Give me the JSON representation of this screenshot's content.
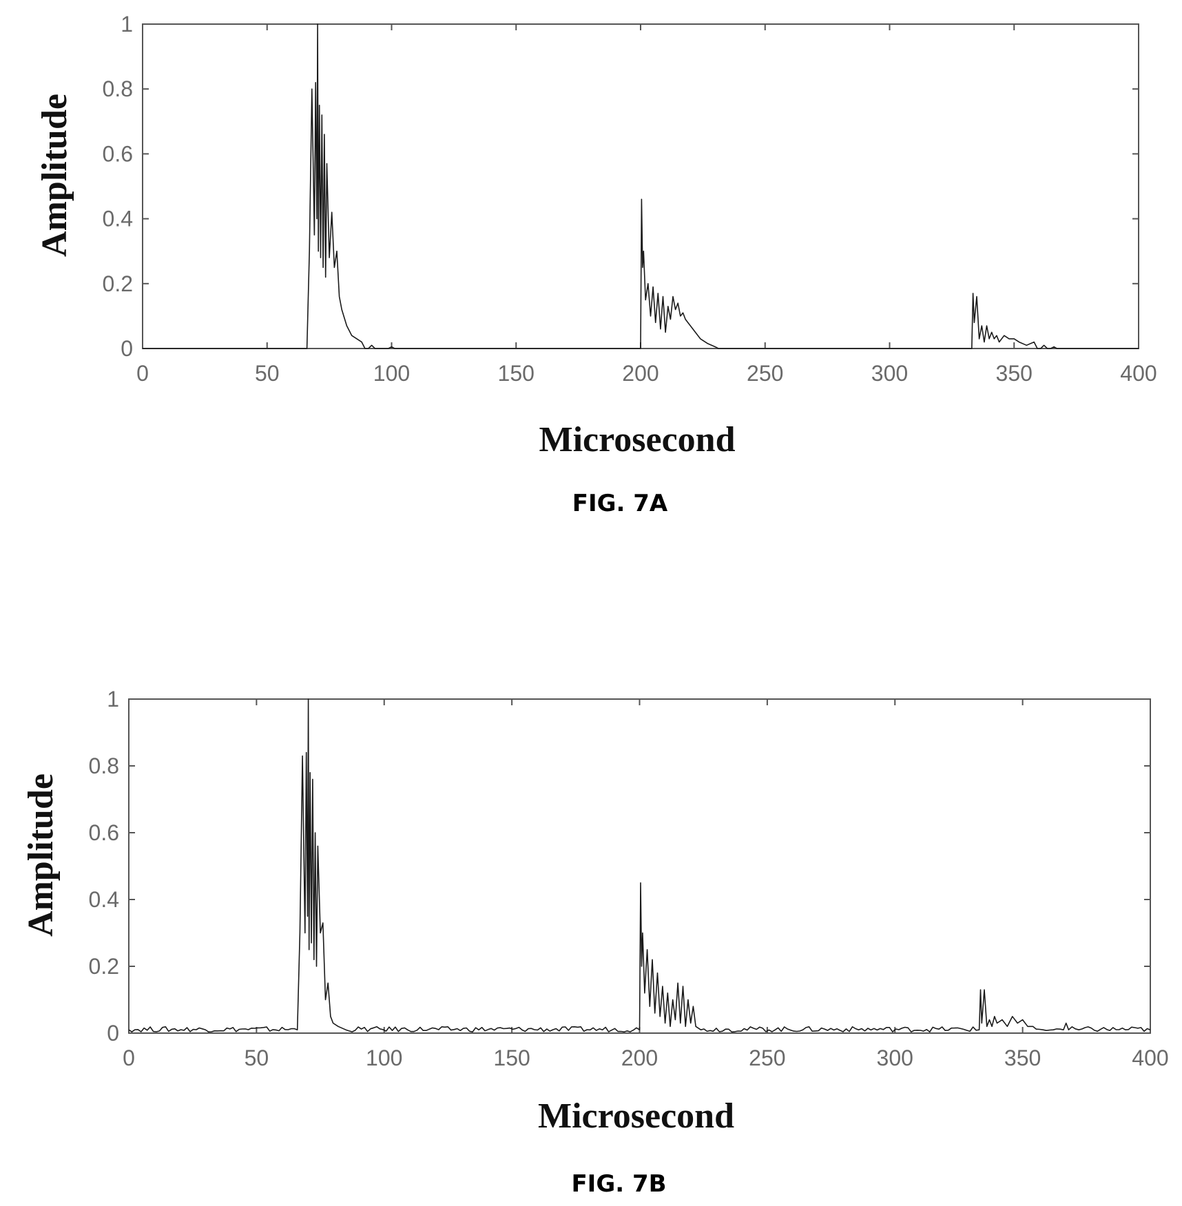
{
  "chart_data": [
    {
      "type": "line",
      "figure_label": "FIG. 7A",
      "xlabel": "Microsecond",
      "ylabel": "Amplitude",
      "xlim": [
        0,
        400
      ],
      "ylim": [
        0,
        1
      ],
      "xticks": [
        "0",
        "50",
        "100",
        "150",
        "200",
        "250",
        "300",
        "350",
        "400"
      ],
      "yticks": [
        "0",
        "0.2",
        "0.4",
        "0.6",
        "0.8",
        "1"
      ],
      "xtick_values": [
        0,
        50,
        100,
        150,
        200,
        250,
        300,
        350,
        400
      ],
      "ytick_values": [
        0,
        0.2,
        0.4,
        0.6,
        0.8,
        1
      ],
      "grid": false,
      "noise_floor": 0.0,
      "series": [
        {
          "x": [
            0,
            66,
            67,
            68,
            69,
            69.5,
            70,
            70.3,
            70.6,
            71,
            71.5,
            72,
            72.5,
            73,
            73.5,
            74,
            75,
            76,
            77,
            78,
            79,
            80,
            82,
            84,
            88,
            92,
            100,
            110,
            200,
            200.4,
            200.8,
            201.2,
            202,
            203,
            204,
            205,
            206,
            207,
            208,
            209,
            210,
            211,
            212,
            213,
            214,
            215,
            216,
            217,
            218,
            220,
            222,
            224,
            227,
            230,
            235,
            333,
            333.5,
            334,
            335,
            336,
            337,
            338,
            339,
            340,
            341,
            342,
            343,
            344,
            346,
            348,
            350,
            352,
            355,
            358,
            362,
            366,
            372,
            400
          ],
          "y": [
            0,
            0,
            0.3,
            0.8,
            0.35,
            0.82,
            0.4,
            1.0,
            0.3,
            0.75,
            0.28,
            0.72,
            0.25,
            0.66,
            0.22,
            0.57,
            0.28,
            0.42,
            0.25,
            0.3,
            0.16,
            0.12,
            0.07,
            0.04,
            0.02,
            0.01,
            0.005,
            0,
            0,
            0.46,
            0.25,
            0.3,
            0.15,
            0.2,
            0.1,
            0.19,
            0.08,
            0.17,
            0.06,
            0.16,
            0.05,
            0.13,
            0.09,
            0.16,
            0.12,
            0.14,
            0.1,
            0.11,
            0.09,
            0.07,
            0.05,
            0.03,
            0.015,
            0.005,
            0,
            0,
            0.17,
            0.08,
            0.16,
            0.03,
            0.07,
            0.02,
            0.07,
            0.03,
            0.05,
            0.03,
            0.04,
            0.02,
            0.04,
            0.03,
            0.03,
            0.02,
            0.01,
            0.02,
            0.01,
            0.005,
            0,
            0
          ]
        }
      ]
    },
    {
      "type": "line",
      "figure_label": "FIG. 7B",
      "xlabel": "Microsecond",
      "ylabel": "Amplitude",
      "xlim": [
        0,
        400
      ],
      "ylim": [
        0,
        1
      ],
      "xticks": [
        "0",
        "50",
        "100",
        "150",
        "200",
        "250",
        "300",
        "350",
        "400"
      ],
      "yticks": [
        "0",
        "0.2",
        "0.4",
        "0.6",
        "0.8",
        "1"
      ],
      "xtick_values": [
        0,
        50,
        100,
        150,
        200,
        250,
        300,
        350,
        400
      ],
      "ytick_values": [
        0,
        0.2,
        0.4,
        0.6,
        0.8,
        1
      ],
      "grid": false,
      "noise_floor": 0.012,
      "series": [
        {
          "x": [
            0,
            66,
            67,
            68,
            69,
            69.5,
            70,
            70.3,
            70.6,
            71,
            71.5,
            72,
            72.5,
            73,
            73.5,
            74,
            75,
            76,
            77,
            78,
            79,
            80,
            82,
            85,
            200,
            200.4,
            200.8,
            201.2,
            202,
            203,
            204,
            205,
            206,
            207,
            208,
            209,
            210,
            211,
            212,
            213,
            214,
            215,
            216,
            217,
            218,
            219,
            220,
            221,
            222,
            224,
            333,
            333.5,
            334,
            335,
            336,
            337,
            338,
            339,
            340,
            342,
            344,
            346,
            348,
            350,
            352,
            354,
            358,
            362,
            366,
            367,
            368,
            372,
            400
          ],
          "y": [
            0.01,
            0.01,
            0.3,
            0.83,
            0.3,
            0.84,
            0.35,
            1.0,
            0.25,
            0.78,
            0.27,
            0.76,
            0.22,
            0.6,
            0.2,
            0.56,
            0.3,
            0.33,
            0.1,
            0.15,
            0.05,
            0.03,
            0.02,
            0.01,
            0.01,
            0.45,
            0.2,
            0.3,
            0.12,
            0.25,
            0.08,
            0.22,
            0.06,
            0.18,
            0.05,
            0.14,
            0.03,
            0.12,
            0.02,
            0.1,
            0.04,
            0.15,
            0.03,
            0.14,
            0.02,
            0.1,
            0.03,
            0.08,
            0.02,
            0.01,
            0.01,
            0.13,
            0.03,
            0.13,
            0.02,
            0.04,
            0.02,
            0.05,
            0.03,
            0.04,
            0.02,
            0.05,
            0.03,
            0.04,
            0.02,
            0.02,
            0.01,
            0.01,
            0.01,
            0.03,
            0.01,
            0.01,
            0.01
          ]
        }
      ]
    }
  ]
}
